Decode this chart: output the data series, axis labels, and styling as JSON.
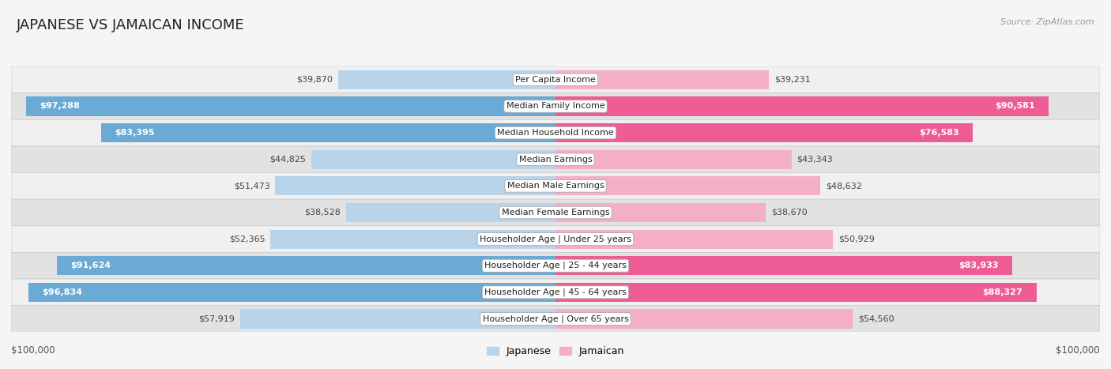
{
  "title": "JAPANESE VS JAMAICAN INCOME",
  "source": "Source: ZipAtlas.com",
  "max_value": 100000,
  "categories": [
    "Per Capita Income",
    "Median Family Income",
    "Median Household Income",
    "Median Earnings",
    "Median Male Earnings",
    "Median Female Earnings",
    "Householder Age | Under 25 years",
    "Householder Age | 25 - 44 years",
    "Householder Age | 45 - 64 years",
    "Householder Age | Over 65 years"
  ],
  "japanese_values": [
    39870,
    97288,
    83395,
    44825,
    51473,
    38528,
    52365,
    91624,
    96834,
    57919
  ],
  "jamaican_values": [
    39231,
    90581,
    76583,
    43343,
    48632,
    38670,
    50929,
    83933,
    88327,
    54560
  ],
  "japanese_labels": [
    "$39,870",
    "$97,288",
    "$83,395",
    "$44,825",
    "$51,473",
    "$38,528",
    "$52,365",
    "$91,624",
    "$96,834",
    "$57,919"
  ],
  "jamaican_labels": [
    "$39,231",
    "$90,581",
    "$76,583",
    "$43,343",
    "$48,632",
    "$38,670",
    "$50,929",
    "$83,933",
    "$88,327",
    "$54,560"
  ],
  "japanese_color_light": "#b8d4ea",
  "japanese_color_dark": "#6aaad4",
  "jamaican_color_light": "#f4afc8",
  "jamaican_color_dark": "#ee5c96",
  "row_bg_light": "#f0f0f0",
  "row_bg_dark": "#e2e2e2",
  "fig_bg": "#f5f5f5",
  "label_inside_threshold": 75000,
  "bottom_label": "$100,000",
  "legend_japanese": "Japanese",
  "legend_jamaican": "Jamaican",
  "title_fontsize": 13,
  "source_fontsize": 8,
  "label_fontsize": 8,
  "cat_fontsize": 8
}
